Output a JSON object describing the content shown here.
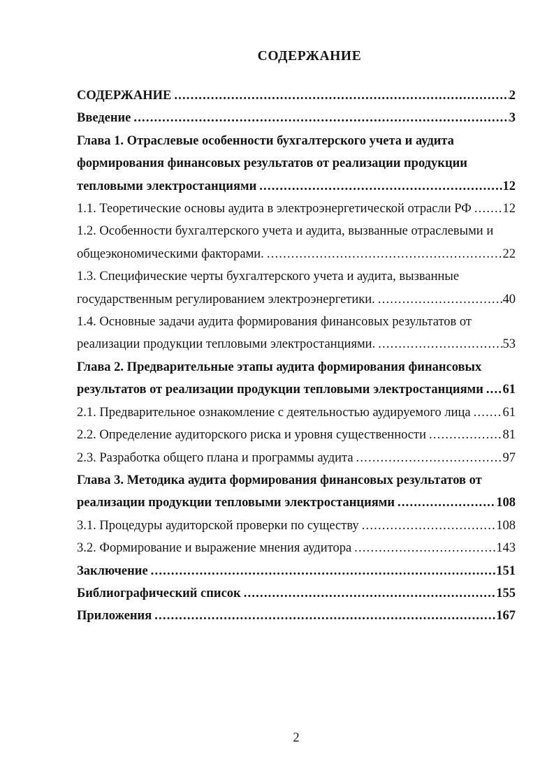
{
  "page": {
    "title": "СОДЕРЖАНИЕ",
    "footer_page_number": "2"
  },
  "toc": {
    "entries": [
      {
        "bold": true,
        "lines": [
          "СОДЕРЖАНИЕ"
        ],
        "page": "2"
      },
      {
        "bold": true,
        "lines": [
          "Введение"
        ],
        "page": "3"
      },
      {
        "bold": true,
        "lines": [
          "Глава 1. Отраслевые особенности бухгалтерского учета и аудита",
          "формирования финансовых результатов от реализации продукции",
          "тепловыми электростанциями"
        ],
        "page": "12"
      },
      {
        "bold": false,
        "lines": [
          "1.1. Теоретические основы аудита в электроэнергетической отрасли РФ"
        ],
        "page": "12"
      },
      {
        "bold": false,
        "lines": [
          "1.2. Особенности бухгалтерского учета и аудита, вызванные отраслевыми и",
          "общеэкономическими факторами."
        ],
        "page": "22"
      },
      {
        "bold": false,
        "lines": [
          "1.3. Специфические черты бухгалтерского учета и аудита, вызванные",
          "государственным регулированием электроэнергетики."
        ],
        "page": "40"
      },
      {
        "bold": false,
        "lines": [
          "1.4. Основные задачи аудита формирования финансовых результатов от",
          "реализации продукции тепловыми электростанциями."
        ],
        "page": "53"
      },
      {
        "bold": true,
        "lines": [
          "Глава 2. Предварительные этапы аудита формирования финансовых",
          "результатов от реализации продукции тепловыми электростанциями"
        ],
        "page": "61"
      },
      {
        "bold": false,
        "lines": [
          "2.1. Предварительное ознакомление с деятельностью аудируемого лица"
        ],
        "page": "61"
      },
      {
        "bold": false,
        "lines": [
          "2.2. Определение аудиторского риска и уровня существенности"
        ],
        "page": "81"
      },
      {
        "bold": false,
        "lines": [
          "2.3. Разработка общего плана и программы аудита"
        ],
        "page": "97"
      },
      {
        "bold": true,
        "lines": [
          "Глава 3. Методика аудита формирования финансовых результатов от",
          "реализации продукции тепловыми электростанциями"
        ],
        "page": "108"
      },
      {
        "bold": false,
        "lines": [
          "3.1. Процедуры аудиторской проверки по существу"
        ],
        "page": "108"
      },
      {
        "bold": false,
        "lines": [
          "3.2. Формирование и выражение мнения аудитора"
        ],
        "page": "143"
      },
      {
        "bold": true,
        "lines": [
          "Заключение"
        ],
        "page": "151"
      },
      {
        "bold": true,
        "lines": [
          "Библиографический список"
        ],
        "page": "155"
      },
      {
        "bold": true,
        "lines": [
          "Приложения"
        ],
        "page": "167"
      }
    ]
  }
}
